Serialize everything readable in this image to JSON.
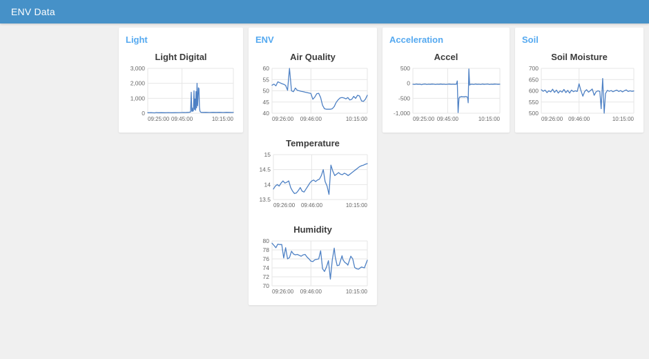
{
  "header": {
    "title": "ENV Data"
  },
  "theme": {
    "header_bg": "#4691c8",
    "page_bg": "#f0f0f0",
    "card_bg": "#ffffff",
    "group_title_color": "#55a9f0",
    "chart_title_color": "#3b3b3b",
    "axis_label_color": "#666666",
    "grid_color": "#e6e6e6",
    "line_color": "#4d80c4"
  },
  "groups": [
    {
      "label": "Light"
    },
    {
      "label": "ENV"
    },
    {
      "label": "Acceleration"
    },
    {
      "label": "Soil"
    }
  ],
  "chart_data": [
    {
      "id": "light_digital",
      "type": "line",
      "title": "Light Digital",
      "xlabel": "",
      "ylabel": "",
      "grid": true,
      "legend": "none",
      "xlim": [
        0,
        50
      ],
      "ylim": [
        0,
        3000
      ],
      "x_ticks": [
        {
          "t": 0,
          "label": "09:25:00"
        },
        {
          "t": 20,
          "label": "09:45:00"
        },
        {
          "t": 50,
          "label": "10:15:00"
        }
      ],
      "y_ticks": [
        {
          "v": 0,
          "label": "0"
        },
        {
          "v": 1000,
          "label": "1,000"
        },
        {
          "v": 2000,
          "label": "2,000"
        },
        {
          "v": 3000,
          "label": "3,000"
        }
      ],
      "x": [
        0,
        2,
        4,
        5,
        6,
        8,
        10,
        12,
        14,
        16,
        18,
        20,
        21,
        22,
        23,
        24,
        25,
        25.4,
        25.7,
        26,
        26.3,
        26.6,
        27,
        27.3,
        27.6,
        27.9,
        28.2,
        28.5,
        28.8,
        29.1,
        29.3,
        29.6,
        29.9,
        30.2,
        30.5,
        30.8,
        31.2,
        32,
        34,
        36,
        38,
        40,
        42,
        44,
        46,
        48,
        50
      ],
      "y": [
        30,
        40,
        25,
        45,
        30,
        35,
        30,
        40,
        30,
        35,
        40,
        45,
        50,
        45,
        55,
        60,
        80,
        1400,
        150,
        120,
        350,
        150,
        1500,
        250,
        950,
        200,
        1450,
        350,
        2000,
        500,
        900,
        1700,
        1650,
        400,
        150,
        80,
        60,
        55,
        60,
        50,
        60,
        55,
        60,
        50,
        60,
        55,
        50
      ]
    },
    {
      "id": "air_quality",
      "type": "line",
      "title": "Air Quality",
      "xlabel": "",
      "ylabel": "",
      "grid": true,
      "legend": "none",
      "xlim": [
        0,
        49
      ],
      "ylim": [
        40,
        60
      ],
      "x_ticks": [
        {
          "t": 0,
          "label": "09:26:00"
        },
        {
          "t": 20,
          "label": "09:46:00"
        },
        {
          "t": 49,
          "label": "10:15:00"
        }
      ],
      "y_ticks": [
        {
          "v": 40,
          "label": "40"
        },
        {
          "v": 45,
          "label": "45"
        },
        {
          "v": 50,
          "label": "50"
        },
        {
          "v": 55,
          "label": "55"
        },
        {
          "v": 60,
          "label": "60"
        }
      ],
      "x": [
        0,
        1,
        2,
        3,
        4,
        5,
        6,
        7,
        8,
        9,
        10,
        11,
        12,
        13,
        14,
        15,
        16,
        17,
        18,
        19,
        20,
        21,
        22,
        23,
        24,
        25,
        26,
        27,
        28,
        29,
        30,
        31,
        32,
        33,
        34,
        35,
        36,
        37,
        38,
        39,
        40,
        41,
        42,
        43,
        44,
        45,
        46,
        47,
        48,
        49
      ],
      "y": [
        52.5,
        53.0,
        52.2,
        54.0,
        53.6,
        53.2,
        52.9,
        52.4,
        50.2,
        60.0,
        50.0,
        49.6,
        51.2,
        50.2,
        50.0,
        49.8,
        49.6,
        49.4,
        49.2,
        49.0,
        48.8,
        46.2,
        47.2,
        48.7,
        48.9,
        47.0,
        43.5,
        42.0,
        41.8,
        41.8,
        41.8,
        42.0,
        43.0,
        44.8,
        46.0,
        46.8,
        47.0,
        46.8,
        46.4,
        47.0,
        45.9,
        46.2,
        47.5,
        46.6,
        48.0,
        47.7,
        45.5,
        45.3,
        46.2,
        48.0
      ]
    },
    {
      "id": "temperature",
      "type": "line",
      "title": "Temperature",
      "xlabel": "",
      "ylabel": "",
      "grid": true,
      "legend": "none",
      "xlim": [
        0,
        49
      ],
      "ylim": [
        13.5,
        15
      ],
      "x_ticks": [
        {
          "t": 0,
          "label": "09:26:00"
        },
        {
          "t": 20,
          "label": "09:46:00"
        },
        {
          "t": 49,
          "label": "10:15:00"
        }
      ],
      "y_ticks": [
        {
          "v": 13.5,
          "label": "13.5"
        },
        {
          "v": 14,
          "label": "14"
        },
        {
          "v": 14.5,
          "label": "14.5"
        },
        {
          "v": 15,
          "label": "15"
        }
      ],
      "x": [
        0,
        1,
        2,
        3,
        4,
        5,
        6,
        7,
        8,
        9,
        10,
        11,
        12,
        13,
        14,
        15,
        16,
        17,
        18,
        19,
        20,
        21,
        22,
        23,
        24,
        25,
        26,
        27,
        28,
        29,
        30,
        31,
        32,
        33,
        34,
        35,
        36,
        37,
        38,
        39,
        40,
        41,
        42,
        43,
        44,
        45,
        46,
        47,
        48,
        49
      ],
      "y": [
        13.85,
        13.95,
        14.0,
        13.95,
        14.05,
        14.12,
        14.05,
        14.08,
        14.12,
        13.9,
        13.78,
        13.7,
        13.72,
        13.8,
        13.9,
        13.78,
        13.75,
        13.85,
        13.95,
        14.05,
        14.12,
        14.15,
        14.1,
        14.15,
        14.18,
        14.3,
        14.5,
        14.1,
        13.95,
        13.67,
        14.65,
        14.45,
        14.3,
        14.35,
        14.4,
        14.35,
        14.33,
        14.38,
        14.35,
        14.3,
        14.35,
        14.4,
        14.45,
        14.5,
        14.55,
        14.6,
        14.63,
        14.65,
        14.68,
        14.7
      ]
    },
    {
      "id": "humidity",
      "type": "line",
      "title": "Humidity",
      "xlabel": "",
      "ylabel": "",
      "grid": true,
      "legend": "none",
      "xlim": [
        0,
        49
      ],
      "ylim": [
        70,
        80
      ],
      "x_ticks": [
        {
          "t": 0,
          "label": "09:26:00"
        },
        {
          "t": 20,
          "label": "09:46:00"
        },
        {
          "t": 49,
          "label": "10:15:00"
        }
      ],
      "y_ticks": [
        {
          "v": 70,
          "label": "70"
        },
        {
          "v": 72,
          "label": "72"
        },
        {
          "v": 74,
          "label": "74"
        },
        {
          "v": 76,
          "label": "76"
        },
        {
          "v": 78,
          "label": "78"
        },
        {
          "v": 80,
          "label": "80"
        }
      ],
      "x": [
        0,
        1,
        2,
        3,
        4,
        5,
        6,
        7,
        8,
        9,
        10,
        11,
        12,
        13,
        14,
        15,
        16,
        17,
        18,
        19,
        20,
        21,
        22,
        23,
        24,
        25,
        26,
        27,
        28,
        29,
        30,
        31,
        32,
        32.5,
        33.5,
        34.5,
        35.5,
        36,
        36.5,
        37.5,
        38.5,
        39,
        40.5,
        41.5,
        42.5,
        43.5,
        44.5,
        46,
        47.5,
        49
      ],
      "y": [
        79.5,
        79.0,
        78.5,
        79.3,
        79.2,
        79.2,
        76.2,
        78.5,
        76.0,
        76.3,
        77.7,
        77.1,
        76.9,
        77.0,
        76.8,
        76.6,
        76.9,
        77.0,
        76.4,
        76.0,
        75.5,
        75.4,
        75.8,
        75.9,
        76.0,
        77.8,
        73.8,
        73.2,
        74.2,
        75.6,
        71.5,
        75.8,
        78.4,
        76.5,
        74.5,
        74.6,
        76.0,
        76.7,
        75.8,
        75.2,
        74.9,
        74.6,
        76.6,
        76.0,
        74.1,
        73.8,
        73.7,
        74.2,
        74.0,
        75.7
      ]
    },
    {
      "id": "accel",
      "type": "line",
      "title": "Accel",
      "xlabel": "",
      "ylabel": "",
      "grid": true,
      "legend": "none",
      "xlim": [
        0,
        50
      ],
      "ylim": [
        -1000,
        500
      ],
      "x_ticks": [
        {
          "t": 0,
          "label": "09:25:00"
        },
        {
          "t": 20,
          "label": "09:45:00"
        },
        {
          "t": 50,
          "label": "10:15:00"
        }
      ],
      "y_ticks": [
        {
          "v": -1000,
          "label": "-1,000"
        },
        {
          "v": -500,
          "label": "-500"
        },
        {
          "v": 0,
          "label": "0"
        },
        {
          "v": 500,
          "label": "500"
        }
      ],
      "x": [
        0,
        1,
        2,
        3,
        4,
        5,
        6,
        7,
        8,
        9,
        10,
        11,
        12,
        13,
        14,
        15,
        16,
        17,
        18,
        19,
        20,
        21,
        22,
        23,
        24,
        25,
        25.5,
        26,
        26.5,
        27,
        27.5,
        28,
        28.5,
        29,
        29.5,
        30,
        30.5,
        31,
        31.5,
        31.8,
        32.2,
        32.6,
        33,
        34,
        35,
        36,
        37,
        38,
        39,
        40,
        41,
        42,
        43,
        44,
        45,
        46,
        47,
        48,
        49,
        50
      ],
      "y": [
        -30,
        -40,
        -25,
        -35,
        -30,
        -45,
        -30,
        -25,
        -40,
        -30,
        -35,
        -25,
        -30,
        -40,
        -30,
        -35,
        -25,
        -35,
        -30,
        -40,
        -30,
        -25,
        -35,
        -30,
        -35,
        -30,
        80,
        -980,
        -500,
        -450,
        -460,
        -440,
        -455,
        -445,
        -460,
        -440,
        -450,
        -445,
        -480,
        -650,
        480,
        -60,
        -35,
        -30,
        -40,
        -25,
        -35,
        -30,
        -40,
        -25,
        -35,
        -30,
        -25,
        -40,
        -30,
        -35,
        -25,
        -30,
        -35,
        -30
      ]
    },
    {
      "id": "soil_moisture",
      "type": "line",
      "title": "Soil Moisture",
      "xlabel": "",
      "ylabel": "",
      "grid": true,
      "legend": "none",
      "xlim": [
        0,
        49
      ],
      "ylim": [
        500,
        700
      ],
      "x_ticks": [
        {
          "t": 0,
          "label": "09:26:00"
        },
        {
          "t": 20,
          "label": "09:46:00"
        },
        {
          "t": 49,
          "label": "10:15:00"
        }
      ],
      "y_ticks": [
        {
          "v": 500,
          "label": "500"
        },
        {
          "v": 550,
          "label": "550"
        },
        {
          "v": 600,
          "label": "600"
        },
        {
          "v": 650,
          "label": "650"
        },
        {
          "v": 700,
          "label": "700"
        }
      ],
      "x": [
        0,
        1,
        2,
        3,
        4,
        5,
        6,
        7,
        8,
        9,
        10,
        11,
        12,
        13,
        14,
        15,
        16,
        17,
        18,
        19,
        20,
        21,
        22,
        23,
        24,
        25,
        26,
        27,
        28,
        29,
        30,
        31,
        31.7,
        32.5,
        33.3,
        34,
        35,
        36,
        37,
        38,
        39,
        40,
        41,
        42,
        43,
        44,
        45,
        46,
        47,
        48,
        49
      ],
      "y": [
        605,
        598,
        603,
        592,
        600,
        595,
        607,
        593,
        603,
        590,
        600,
        594,
        606,
        592,
        602,
        590,
        603,
        596,
        600,
        597,
        631,
        601,
        576,
        597,
        605,
        594,
        601,
        608,
        580,
        595,
        600,
        597,
        520,
        655,
        500,
        588,
        602,
        598,
        601,
        596,
        600,
        603,
        597,
        601,
        595,
        600,
        604,
        597,
        600,
        598,
        599
      ]
    }
  ]
}
